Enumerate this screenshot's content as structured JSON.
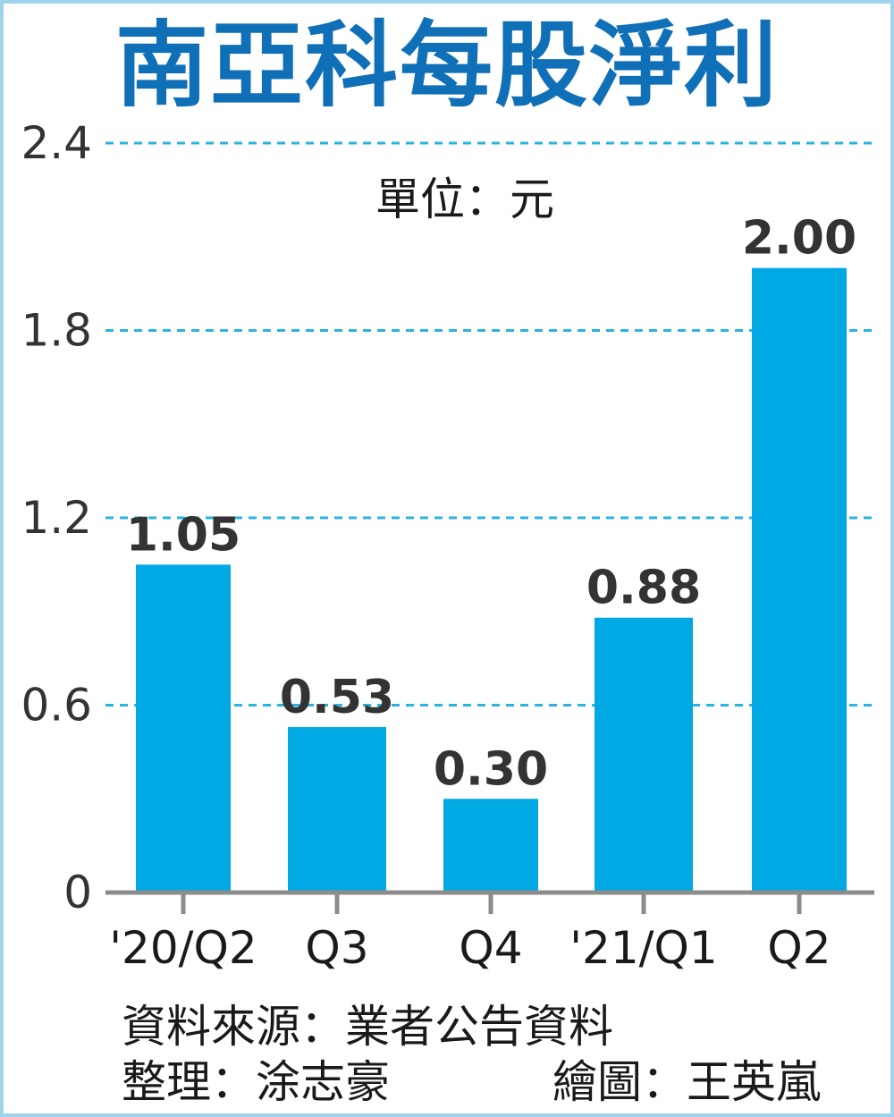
{
  "title": "南亞科每股淨利",
  "unit_label": "單位：元",
  "source_label": "資料來源：業者公告資料",
  "compiler_label": "整理：涂志豪",
  "illustrator_label": "繪圖：王英嵐",
  "colors": {
    "title": "#0f6fb7",
    "bar": "#00a9e4",
    "grid": "#29b3e3",
    "axis": "#8c8c8c",
    "frame": "#9fd3ec"
  },
  "chart_data": {
    "type": "bar",
    "title": "南亞科每股淨利",
    "unit": "單位：元",
    "categories": [
      "'20/Q2",
      "Q3",
      "Q4",
      "'21/Q1",
      "Q2"
    ],
    "values": [
      1.05,
      0.53,
      0.3,
      0.88,
      2.0
    ],
    "value_labels": [
      "1.05",
      "0.53",
      "0.30",
      "0.88",
      "2.00"
    ],
    "y_ticks": [
      0,
      0.6,
      1.2,
      1.8,
      2.4
    ],
    "y_tick_labels": [
      "0",
      "0.6",
      "1.2",
      "1.8",
      "2.4"
    ],
    "ylim": [
      0,
      2.4
    ],
    "grid": "dashed horizontal",
    "legend": "none"
  }
}
